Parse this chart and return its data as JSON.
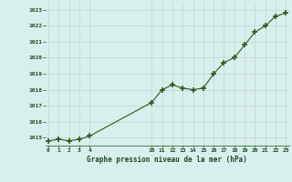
{
  "x": [
    0,
    1,
    2,
    3,
    4,
    10,
    11,
    12,
    13,
    14,
    15,
    16,
    17,
    18,
    19,
    20,
    21,
    22,
    23
  ],
  "y": [
    1014.8,
    1014.9,
    1014.8,
    1014.9,
    1015.1,
    1017.2,
    1018.0,
    1018.3,
    1018.1,
    1018.0,
    1018.1,
    1019.0,
    1019.7,
    1020.0,
    1020.8,
    1021.6,
    1022.0,
    1022.6,
    1022.8
  ],
  "line_color": "#2d5a1b",
  "marker_color": "#2d5a1b",
  "bg_color": "#d6f0ee",
  "grid_color": "#c8d8d4",
  "xlabel": "Graphe pression niveau de la mer (hPa)",
  "xlabel_color": "#1a4a1a",
  "tick_color": "#1a4a1a",
  "ylim": [
    1014.5,
    1023.5
  ],
  "yticks": [
    1015,
    1016,
    1017,
    1018,
    1019,
    1020,
    1021,
    1022,
    1023
  ],
  "xticks": [
    0,
    1,
    2,
    3,
    4,
    10,
    11,
    12,
    13,
    14,
    15,
    16,
    17,
    18,
    19,
    20,
    21,
    22,
    23
  ],
  "xlim": [
    -0.3,
    23.3
  ]
}
